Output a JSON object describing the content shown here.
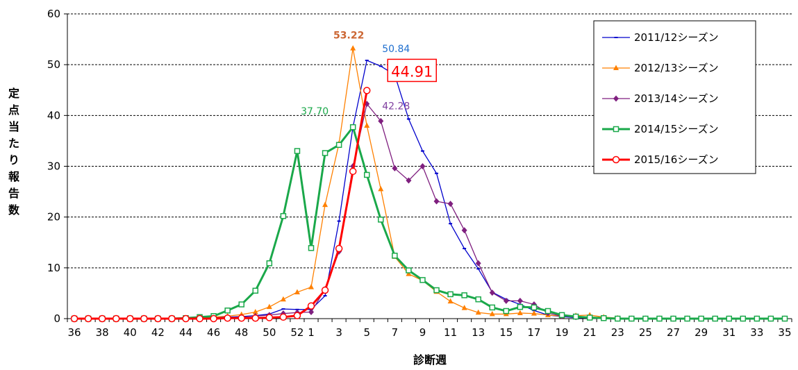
{
  "chart_data": {
    "type": "line",
    "title": "",
    "xlabel": "診断週",
    "ylabel": "定点当たり報告数",
    "ylim": [
      0,
      60
    ],
    "yticks": [
      0,
      10,
      20,
      30,
      40,
      50,
      60
    ],
    "grid": "horizontal-dashed",
    "legend_position": "top-right",
    "x": [
      "36",
      "37",
      "38",
      "39",
      "40",
      "41",
      "42",
      "43",
      "44",
      "45",
      "46",
      "47",
      "48",
      "49",
      "50",
      "51",
      "52",
      "1",
      "2",
      "3",
      "4",
      "5",
      "6",
      "7",
      "8",
      "9",
      "10",
      "11",
      "12",
      "13",
      "14",
      "15",
      "16",
      "17",
      "18",
      "19",
      "20",
      "21",
      "22",
      "23",
      "24",
      "25",
      "26",
      "27",
      "28",
      "29",
      "30",
      "31",
      "32",
      "33",
      "34",
      "35"
    ],
    "xtick_labels": [
      "36",
      "38",
      "40",
      "42",
      "44",
      "46",
      "48",
      "50",
      "52",
      "1",
      "3",
      "5",
      "7",
      "9",
      "11",
      "13",
      "15",
      "17",
      "19",
      "21",
      "23",
      "25",
      "27",
      "29",
      "31",
      "33",
      "35"
    ],
    "xtick_indices": [
      0,
      2,
      4,
      6,
      8,
      10,
      12,
      14,
      16,
      17,
      19,
      21,
      23,
      25,
      27,
      29,
      31,
      33,
      35,
      37,
      39,
      41,
      43,
      45,
      47,
      49,
      51
    ],
    "series": [
      {
        "name": "2011/12シーズン",
        "color": "#0000cc",
        "marker": "dash",
        "width": 1.3,
        "values": [
          0,
          0,
          0,
          0,
          0,
          0,
          0,
          0,
          0,
          0.1,
          0.2,
          0.3,
          0.4,
          0.6,
          0.9,
          1.9,
          1.8,
          1.8,
          4.5,
          19.2,
          37.7,
          50.84,
          49.7,
          48,
          39.3,
          33,
          28.6,
          18.7,
          13.8,
          9.8,
          5.2,
          3.8,
          2.8,
          1.6,
          0.7,
          0.4,
          0.2,
          0.1,
          0.1,
          0,
          0,
          0,
          0,
          0,
          0,
          0,
          0,
          0,
          0,
          0,
          0,
          0
        ]
      },
      {
        "name": "2012/13シーズン",
        "color": "#ff8000",
        "marker": "triangle",
        "width": 1.3,
        "values": [
          0,
          0,
          0,
          0,
          0,
          0,
          0,
          0,
          0.1,
          0.2,
          0.3,
          0.5,
          0.8,
          1.3,
          2.3,
          3.8,
          5.2,
          6.2,
          22.4,
          34.5,
          53.22,
          38,
          25.5,
          12.2,
          8.8,
          7.5,
          5.3,
          3.4,
          2.1,
          1.2,
          0.9,
          0.9,
          1.1,
          1,
          0.7,
          0.5,
          0.6,
          0.7,
          0.3,
          0.1,
          0,
          0,
          0,
          0,
          0,
          0,
          0,
          0,
          0,
          0,
          0,
          0
        ]
      },
      {
        "name": "2013/14シーズン",
        "color": "#7f1f7f",
        "marker": "diamond",
        "width": 1.3,
        "values": [
          0,
          0,
          0,
          0,
          0,
          0,
          0,
          0,
          0,
          0,
          0.1,
          0.2,
          0.3,
          0.5,
          0.7,
          1.0,
          1.2,
          1.3,
          5.8,
          13.2,
          30,
          42.28,
          38.9,
          29.6,
          27.2,
          30,
          23.1,
          22.6,
          17.4,
          10.9,
          5.1,
          3.5,
          3.5,
          2.8,
          1.1,
          0.5,
          0.3,
          0.2,
          0.1,
          0,
          0,
          0,
          0,
          0,
          0,
          0,
          0,
          0,
          0,
          0,
          0,
          0
        ]
      },
      {
        "name": "2014/15シーズン",
        "color": "#1aa84a",
        "marker": "square",
        "width": 3,
        "values": [
          0,
          0,
          0,
          0,
          0,
          0,
          0,
          0,
          0.1,
          0.3,
          0.5,
          1.6,
          2.8,
          5.5,
          10.9,
          20.2,
          33,
          13.9,
          32.6,
          34.2,
          37.7,
          28.3,
          19.5,
          12.4,
          9.5,
          7.6,
          5.6,
          4.8,
          4.6,
          3.8,
          2.2,
          1.5,
          2.3,
          2.2,
          1.5,
          0.7,
          0.4,
          0.2,
          0.1,
          0,
          0,
          0,
          0,
          0,
          0,
          0,
          0,
          0,
          0,
          0,
          0,
          0
        ]
      },
      {
        "name": "2015/16シーズン",
        "color": "#ff0000",
        "marker": "circle",
        "width": 3,
        "values": [
          0,
          0,
          0,
          0,
          0,
          0,
          0,
          0,
          0,
          0,
          0,
          0.1,
          0.1,
          0.1,
          0.2,
          0.3,
          0.6,
          2.5,
          5.6,
          13.8,
          29,
          44.91,
          null,
          null,
          null,
          null,
          null,
          null,
          null,
          null,
          null,
          null,
          null,
          null,
          null,
          null,
          null,
          null,
          null,
          null,
          null,
          null,
          null,
          null,
          null,
          null,
          null,
          null,
          null,
          null,
          null,
          null
        ]
      }
    ],
    "annotations": [
      {
        "text": "53.22",
        "color": "#cc6633",
        "series": 1,
        "index": 20,
        "bold": true,
        "boxed": false
      },
      {
        "text": "50.84",
        "color": "#1f6fcf",
        "series": 0,
        "index": 21,
        "bold": false,
        "boxed": false
      },
      {
        "text": "44.91",
        "color": "#ff0000",
        "series": 4,
        "index": 21,
        "bold": false,
        "boxed": true
      },
      {
        "text": "42.28",
        "color": "#7f3f9f",
        "series": 2,
        "index": 21,
        "bold": false,
        "boxed": false
      },
      {
        "text": "37.70",
        "color": "#1aa84a",
        "series": 3,
        "index": 20,
        "bold": false,
        "boxed": false
      }
    ]
  }
}
